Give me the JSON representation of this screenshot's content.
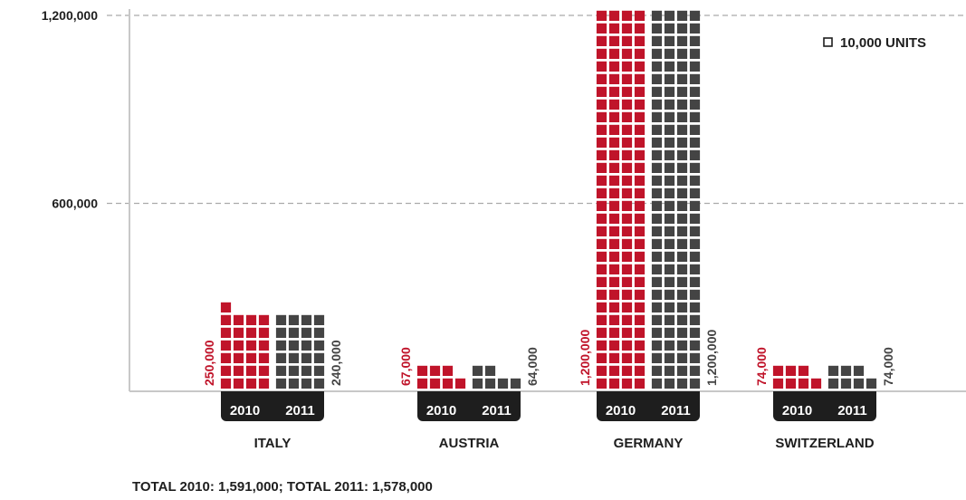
{
  "chart_data": {
    "type": "bar",
    "style": "waffle-pictogram",
    "categories": [
      "ITALY",
      "AUSTRIA",
      "GERMANY",
      "SWITZERLAND"
    ],
    "series": [
      {
        "name": "2010",
        "values": [
          250000,
          67000,
          1200000,
          74000
        ],
        "labels": [
          "250,000",
          "67,000",
          "1,200,000",
          "74,000"
        ],
        "color": "#c0142a"
      },
      {
        "name": "2011",
        "values": [
          240000,
          64000,
          1200000,
          74000
        ],
        "labels": [
          "240,000",
          "64,000",
          "1,200,000",
          "74,000"
        ],
        "color": "#444444"
      }
    ],
    "y_ticks": [
      "600,000",
      "1,200,000"
    ],
    "y_tick_values": [
      600000,
      1200000
    ],
    "ylim": [
      0,
      1200000
    ],
    "unit_value": 10000,
    "legend": {
      "label": "10,000 UNITS",
      "placement": "top-right"
    },
    "grid": true,
    "footer": "TOTAL 2010: 1,591,000; TOTAL 2011: 1,578,000"
  }
}
